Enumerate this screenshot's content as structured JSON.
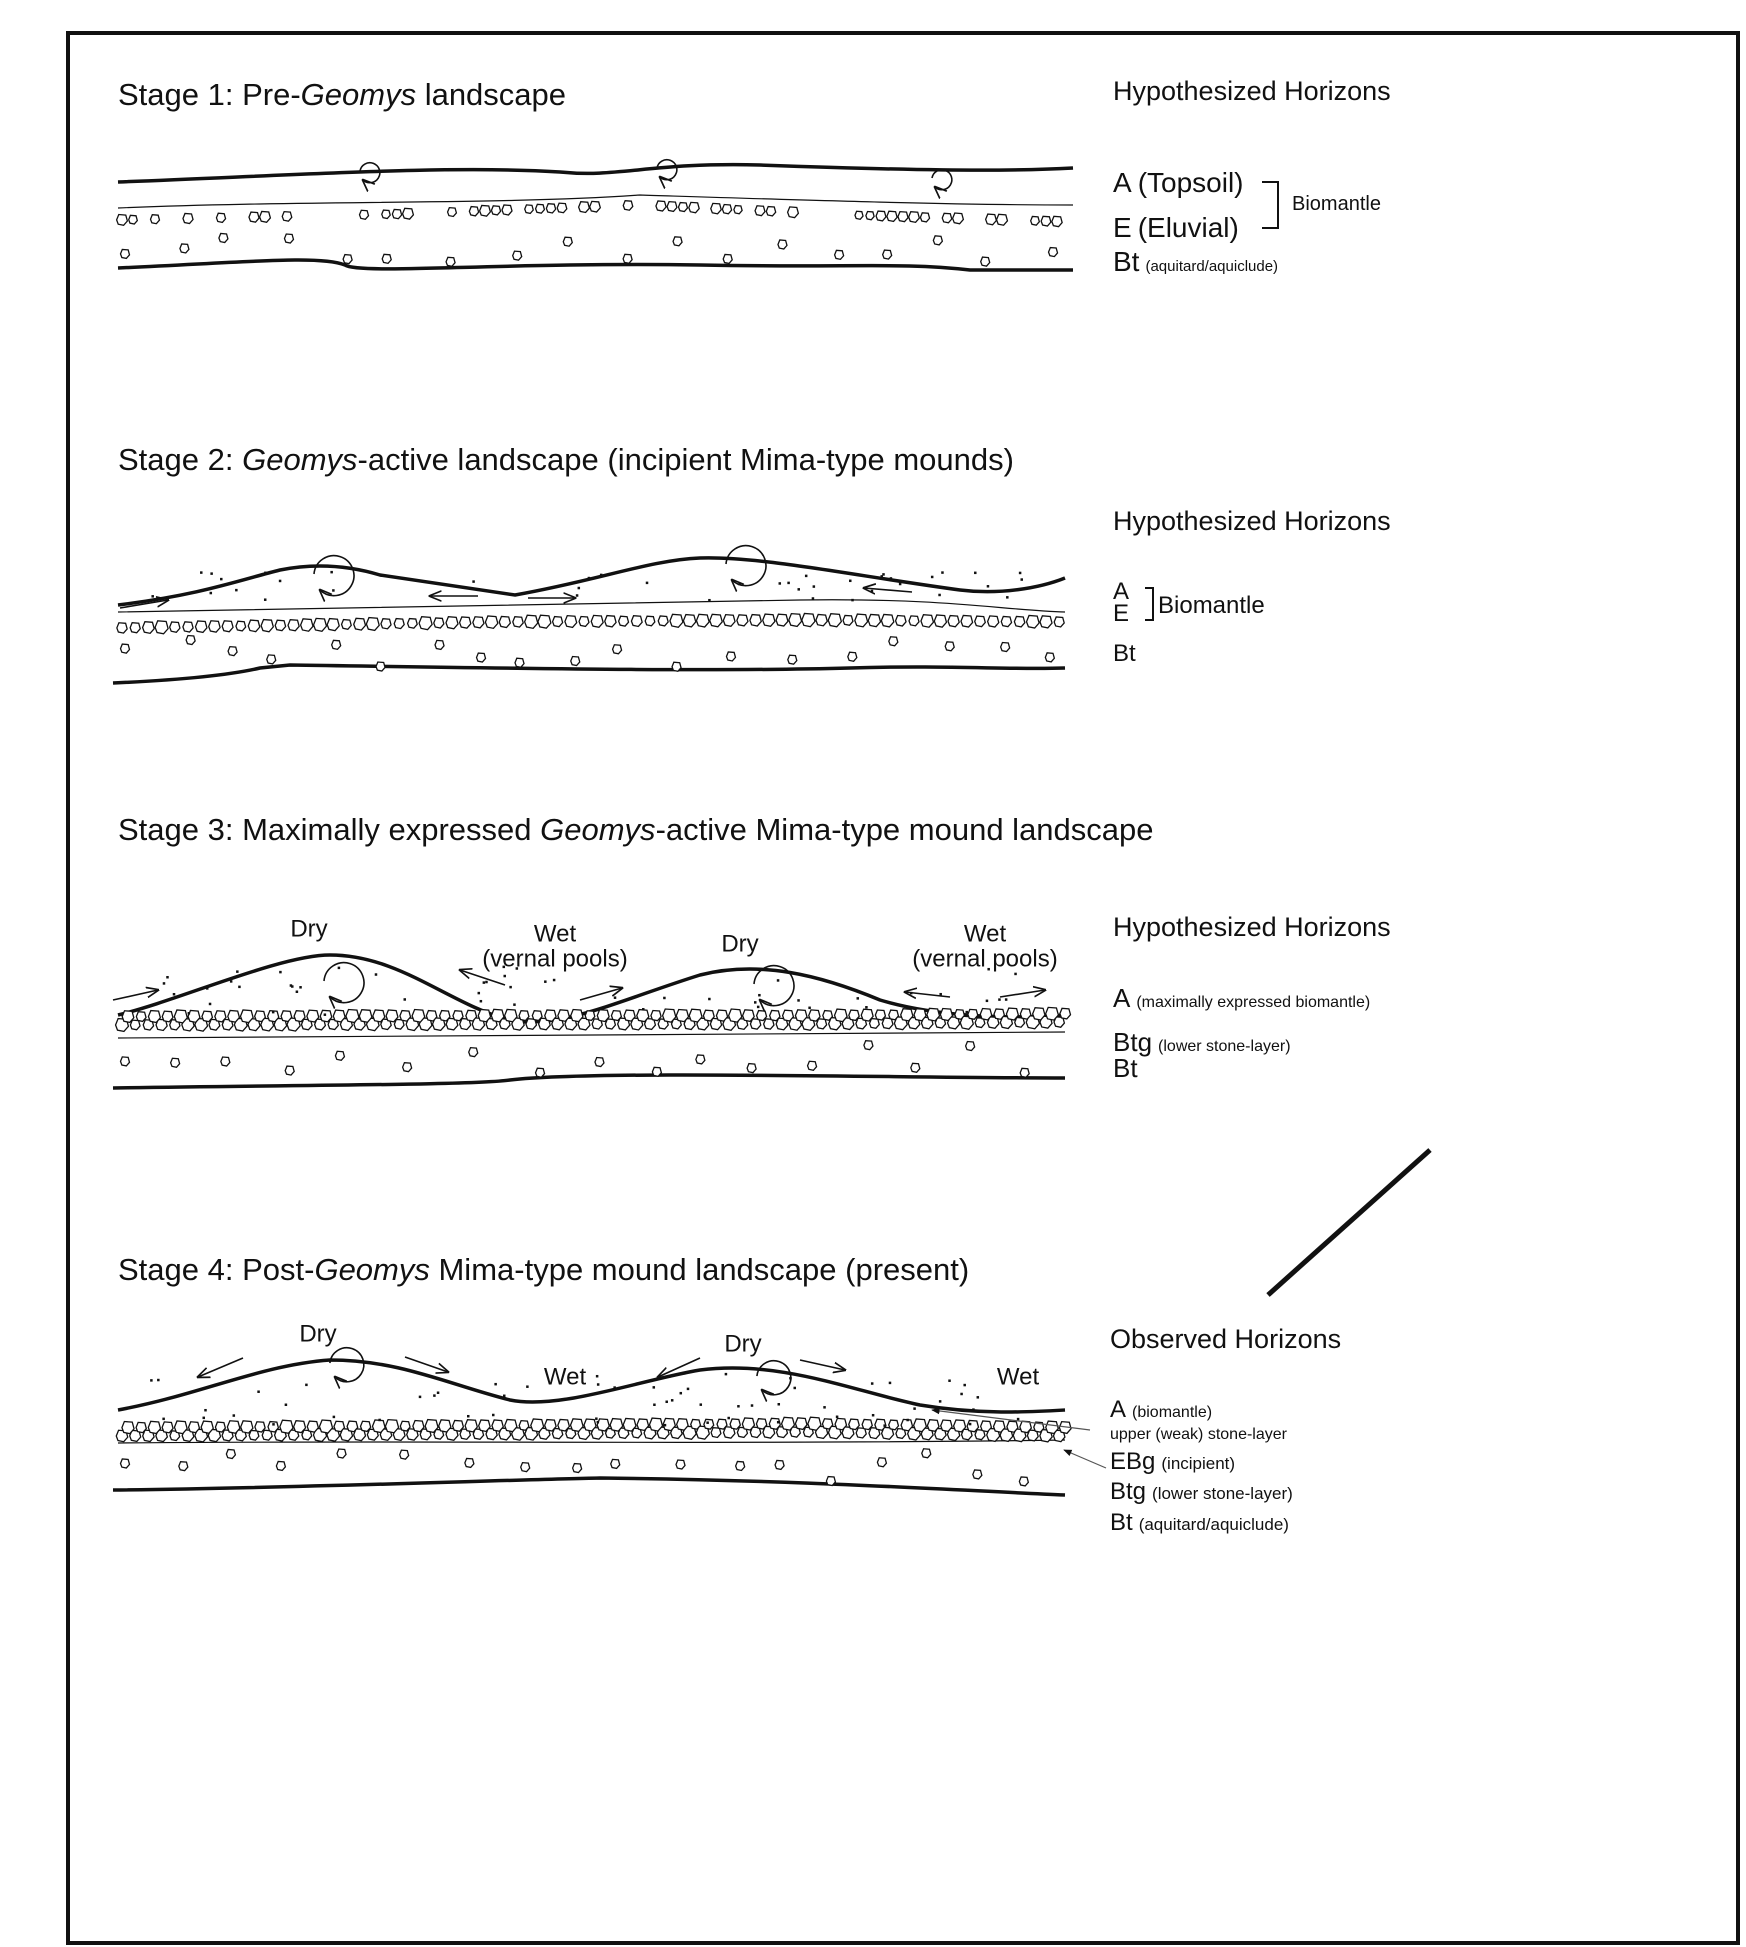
{
  "stages": [
    {
      "title": {
        "before": "Stage 1: Pre-",
        "italic": "Geomys",
        "after": " landscape"
      },
      "horizons_heading": "Hypothesized Horizons",
      "horizons": [
        {
          "symbol": "A",
          "note": "(Topsoil)"
        },
        {
          "symbol": "E",
          "note": "(Eluvial)"
        },
        {
          "symbol": "Bt",
          "note": "(aquitard/aquiclude)"
        }
      ],
      "bracket_label": "Biomantle"
    },
    {
      "title": {
        "before": "Stage 2: ",
        "italic": "Geomys",
        "after": "-active landscape (incipient Mima-type mounds)"
      },
      "horizons_heading": "Hypothesized Horizons",
      "horizons": [
        {
          "symbol": "A"
        },
        {
          "symbol": "E"
        },
        {
          "symbol": "Bt"
        }
      ],
      "bracket_label": "Biomantle"
    },
    {
      "title": {
        "before": "Stage 3: Maximally expressed ",
        "italic": "Geomys",
        "after": "-active Mima-type mound landscape"
      },
      "horizons_heading": "Hypothesized Horizons",
      "horizons": [
        {
          "symbol": "A",
          "note": "(maximally expressed biomantle)"
        },
        {
          "symbol": "Btg",
          "note": "(lower stone-layer)"
        },
        {
          "symbol": "Bt"
        }
      ],
      "annotations": [
        {
          "lines": [
            "Dry"
          ]
        },
        {
          "lines": [
            "Wet",
            "(vernal pools)"
          ]
        },
        {
          "lines": [
            "Dry"
          ]
        },
        {
          "lines": [
            "Wet",
            "(vernal pools)"
          ]
        }
      ]
    },
    {
      "title": {
        "before": "Stage 4: Post-",
        "italic": "Geomys",
        "after": " Mima-type mound landscape (present)"
      },
      "horizons_heading": "Observed Horizons",
      "horizons": [
        {
          "symbol": "A",
          "note": "(biomantle)"
        },
        {
          "note": "upper (weak) stone-layer"
        },
        {
          "symbol": "EBg",
          "note": "(incipient)"
        },
        {
          "symbol": "Btg",
          "note": "(lower stone-layer)"
        },
        {
          "symbol": "Bt",
          "note": "(aquitard/aquiclude)"
        }
      ],
      "annotations": [
        {
          "lines": [
            "Dry"
          ]
        },
        {
          "lines": [
            "Wet"
          ]
        },
        {
          "lines": [
            "Dry"
          ]
        },
        {
          "lines": [
            "Wet"
          ]
        }
      ]
    }
  ]
}
